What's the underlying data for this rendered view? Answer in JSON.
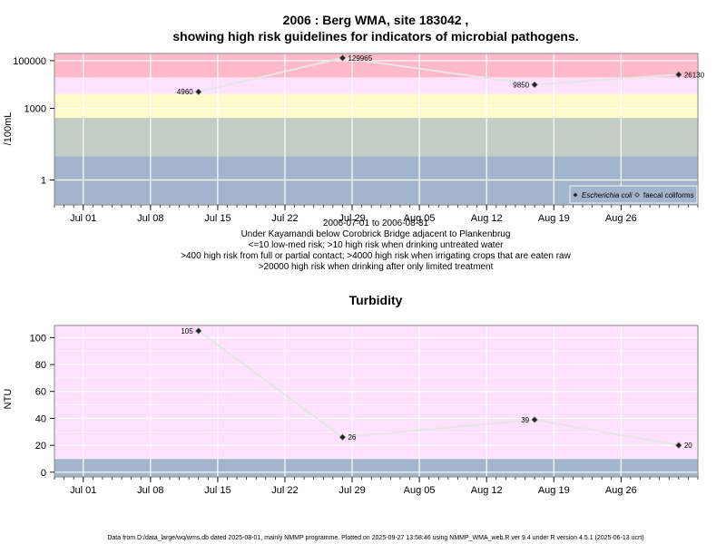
{
  "chart_data": [
    {
      "type": "scatter",
      "title_line1": "2006 : Berg WMA, site 183042 ,",
      "title_line2": "showing high risk guidelines for indicators of microbial pathogens.",
      "ylabel": "/100mL",
      "yscale": "log",
      "ylim": [
        0.09,
        200000
      ],
      "xlim": [
        "2006-06-28",
        "2006-09-03"
      ],
      "x_ticks": [
        {
          "label": "Jul 01",
          "date": "2006-07-01"
        },
        {
          "label": "Jul 08",
          "date": "2006-07-08"
        },
        {
          "label": "Jul 15",
          "date": "2006-07-15"
        },
        {
          "label": "Jul 22",
          "date": "2006-07-22"
        },
        {
          "label": "Jul 29",
          "date": "2006-07-29"
        },
        {
          "label": "Aug 05",
          "date": "2006-08-05"
        },
        {
          "label": "Aug 12",
          "date": "2006-08-12"
        },
        {
          "label": "Aug 19",
          "date": "2006-08-19"
        },
        {
          "label": "Aug 26",
          "date": "2006-08-26"
        }
      ],
      "y_ticks": [
        {
          "label": "1",
          "value": 1
        },
        {
          "label": "1000",
          "value": 1000
        },
        {
          "label": "100000",
          "value": 100000
        }
      ],
      "bands": [
        {
          "from": 0.09,
          "to": 10,
          "color": "#a3b5cc"
        },
        {
          "from": 10,
          "to": 400,
          "color": "#c3cdc3"
        },
        {
          "from": 400,
          "to": 4000,
          "color": "#fdfbcc"
        },
        {
          "from": 4000,
          "to": 20000,
          "color": "#fde1fd"
        },
        {
          "from": 20000,
          "to": 200000,
          "color": "#ffb9c9"
        }
      ],
      "series": [
        {
          "name": "Escherichia coli",
          "marker": "diamond",
          "points": [
            {
              "date": "2006-07-13",
              "value": 4960,
              "label": "4960",
              "label_side": "left"
            },
            {
              "date": "2006-07-28",
              "value": 129965,
              "label": "129965",
              "label_side": "right"
            },
            {
              "date": "2006-08-17",
              "value": 9850,
              "label": "9850",
              "label_side": "left"
            },
            {
              "date": "2006-09-01",
              "value": 26130,
              "label": "26130",
              "label_side": "right"
            }
          ]
        },
        {
          "name": "faecal coliforms",
          "marker": "open-diamond",
          "points": []
        }
      ],
      "legend_position": "bottom-right",
      "caption": [
        "2006-07-01 to 2006-08-31",
        "Under Kayamandi below Corobrick Bridge adjacent to Plankenbrug",
        "<=10 low-med risk; >10 high risk when drinking untreated water",
        ">400 high risk from full or partial contact; >4000 high risk when irrigating crops that are eaten raw",
        ">20000 high risk when drinking after only limited treatment"
      ]
    },
    {
      "type": "line",
      "title": "Turbidity",
      "ylabel": "NTU",
      "ylim": [
        -3.5,
        109
      ],
      "xlim": [
        "2006-06-28",
        "2006-09-03"
      ],
      "x_ticks": [
        {
          "label": "Jul 01",
          "date": "2006-07-01"
        },
        {
          "label": "Jul 08",
          "date": "2006-07-08"
        },
        {
          "label": "Jul 15",
          "date": "2006-07-15"
        },
        {
          "label": "Jul 22",
          "date": "2006-07-22"
        },
        {
          "label": "Jul 29",
          "date": "2006-07-29"
        },
        {
          "label": "Aug 05",
          "date": "2006-08-05"
        },
        {
          "label": "Aug 12",
          "date": "2006-08-12"
        },
        {
          "label": "Aug 19",
          "date": "2006-08-19"
        },
        {
          "label": "Aug 26",
          "date": "2006-08-26"
        }
      ],
      "y_ticks": [
        {
          "label": "0",
          "value": 0
        },
        {
          "label": "20",
          "value": 20
        },
        {
          "label": "40",
          "value": 40
        },
        {
          "label": "60",
          "value": 60
        },
        {
          "label": "80",
          "value": 80
        },
        {
          "label": "100",
          "value": 100
        }
      ],
      "bands": [
        {
          "from": -3.5,
          "to": 10,
          "color": "#a3b5cc"
        },
        {
          "from": 10,
          "to": 109,
          "color": "#fde1fd"
        }
      ],
      "series": [
        {
          "points": [
            {
              "date": "2006-07-13",
              "value": 105,
              "label": "105",
              "label_side": "left"
            },
            {
              "date": "2006-07-28",
              "value": 26,
              "label": "26",
              "label_side": "right"
            },
            {
              "date": "2006-08-17",
              "value": 39,
              "label": "39",
              "label_side": "left"
            },
            {
              "date": "2006-09-01",
              "value": 20,
              "label": "20",
              "label_side": "right"
            }
          ]
        }
      ]
    }
  ],
  "footer": "Data from D:/data_large/wq/wms.db dated 2025-08-01, mainly NMMP programme. Plotted on 2025-09-27 13:58:46 using NMMP_WMA_web.R ver 9.4 under R version 4.5.1 (2025-06-13 ucrt)"
}
